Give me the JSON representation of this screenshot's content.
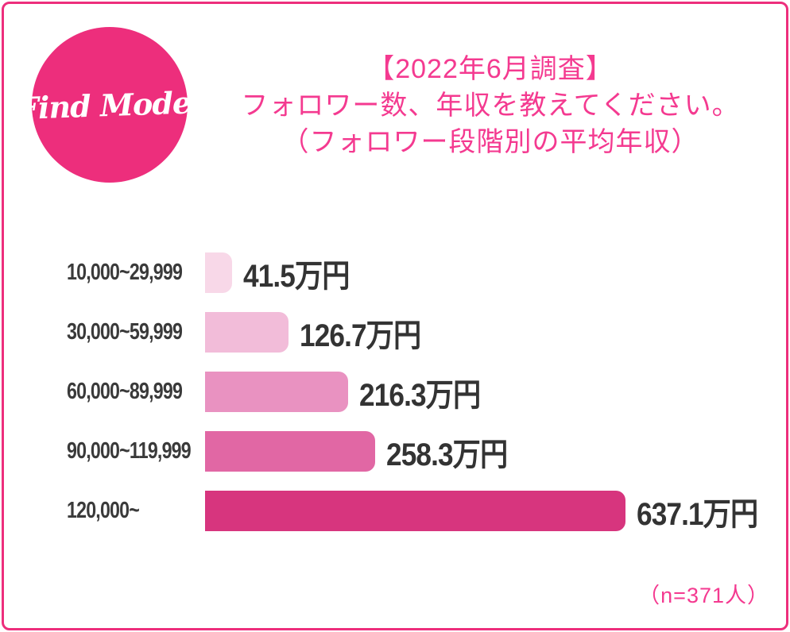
{
  "logo": {
    "text": "Find Model",
    "bg_color": "#ed2e7c",
    "text_color": "#ffffff"
  },
  "title": {
    "line1": "【2022年6月調査】",
    "line2": "フォロワー数、年収を教えてください。",
    "line3": "（フォロワー段階別の平均年収）",
    "color": "#f43a90"
  },
  "chart_data": {
    "type": "bar",
    "orientation": "horizontal",
    "title": "【2022年6月調査】フォロワー数、年収を教えてください。（フォロワー段階別の平均年収）",
    "categories": [
      "10,000~29,999",
      "30,000~59,999",
      "60,000~89,999",
      "90,000~119,999",
      "120,000~"
    ],
    "values": [
      41.5,
      126.7,
      216.3,
      258.3,
      637.1
    ],
    "value_labels": [
      "41.5万円",
      "126.7万円",
      "216.3万円",
      "258.3万円",
      "637.1万円"
    ],
    "unit": "万円",
    "xlim": [
      0,
      680
    ],
    "grid": false,
    "legend": false,
    "bar_colors": [
      "#f8d8e8",
      "#f2bcd9",
      "#e992c1",
      "#e167a4",
      "#d7357e"
    ],
    "label_color": "#3a3a3a",
    "sample_size": "（n=371人）"
  },
  "frame": {
    "border_color": "#ed2e7c"
  }
}
